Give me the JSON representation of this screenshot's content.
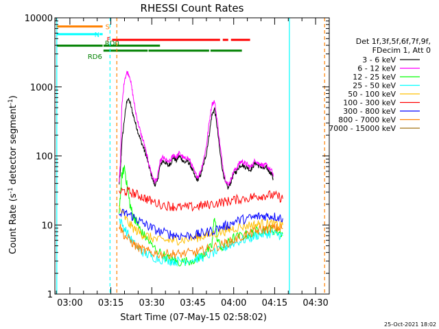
{
  "chart_data": {
    "type": "line",
    "title": "RHESSI Count Rates",
    "xlabel": "Start Time (07-May-15 02:58:02)",
    "ylabel": "Count Rate (s",
    "ylabel_sup": "-1",
    "ylabel_tail": " detector segment",
    "ylabel_sup2": "-1",
    "ylabel_close": ")",
    "yscale": "log",
    "x_units": "minutes since 02:58:02",
    "xlim": [
      -3.5,
      97
    ],
    "ylim": [
      1,
      10000
    ],
    "x_ticks": [
      {
        "label": "03:00",
        "x": 2
      },
      {
        "label": "03:15",
        "x": 17
      },
      {
        "label": "03:30",
        "x": 32
      },
      {
        "label": "03:45",
        "x": 47
      },
      {
        "label": "04:00",
        "x": 62
      },
      {
        "label": "04:15",
        "x": 77
      },
      {
        "label": "04:30",
        "x": 92
      }
    ],
    "y_ticks": [
      {
        "label": "1",
        "y": 1
      },
      {
        "label": "10",
        "y": 10
      },
      {
        "label": "100",
        "y": 100
      },
      {
        "label": "1000",
        "y": 1000
      },
      {
        "label": "10000",
        "y": 10000
      }
    ],
    "legend": {
      "placement": "right",
      "header": [
        "Det 1f,3f,5f,6f,7f,9f,",
        "FDecim 1, Att 0"
      ]
    },
    "series": [
      {
        "name": "3 - 6 keV",
        "color": "#000000",
        "x": [
          20,
          20.5,
          21,
          22,
          23,
          24,
          25,
          26,
          27,
          28,
          29,
          30,
          31,
          32,
          33,
          34,
          35,
          36,
          37,
          38,
          39,
          40,
          41,
          42,
          43,
          44,
          45,
          46,
          47,
          48,
          49,
          50,
          51,
          52,
          53,
          54,
          55,
          56,
          57,
          58,
          59,
          60,
          61,
          62,
          63,
          64,
          65,
          66,
          67,
          68,
          69,
          70,
          71,
          72,
          73,
          74,
          75,
          76,
          76.5
        ],
        "y": [
          38,
          60,
          150,
          350,
          680,
          600,
          420,
          300,
          220,
          165,
          130,
          100,
          70,
          50,
          38,
          42,
          70,
          85,
          80,
          72,
          80,
          95,
          85,
          100,
          90,
          80,
          85,
          75,
          60,
          48,
          45,
          55,
          75,
          110,
          200,
          390,
          480,
          250,
          110,
          60,
          40,
          34,
          42,
          55,
          60,
          70,
          75,
          70,
          68,
          62,
          70,
          80,
          72,
          70,
          65,
          68,
          60,
          55,
          45
        ]
      },
      {
        "name": "6 - 12 keV",
        "color": "#ff00ff",
        "x": [
          20,
          20.5,
          21,
          22,
          23,
          24,
          25,
          26,
          27,
          28,
          29,
          30,
          31,
          32,
          33,
          34,
          35,
          36,
          37,
          38,
          39,
          40,
          41,
          42,
          43,
          44,
          45,
          46,
          47,
          48,
          49,
          50,
          51,
          52,
          53,
          54,
          55,
          56,
          57,
          58,
          59,
          60,
          61,
          62,
          63,
          64,
          65,
          66,
          67,
          68,
          69,
          70,
          71,
          72,
          73,
          74,
          75,
          76,
          76.5
        ],
        "y": [
          40,
          80,
          500,
          1300,
          1650,
          1400,
          800,
          450,
          300,
          210,
          160,
          110,
          75,
          55,
          42,
          48,
          80,
          95,
          88,
          80,
          88,
          105,
          95,
          110,
          100,
          90,
          95,
          85,
          68,
          54,
          50,
          62,
          90,
          140,
          300,
          560,
          620,
          320,
          140,
          72,
          45,
          38,
          46,
          60,
          66,
          78,
          84,
          78,
          75,
          68,
          76,
          88,
          78,
          76,
          72,
          74,
          66,
          60,
          50
        ]
      },
      {
        "name": "12 - 25 keV",
        "color": "#00ff00",
        "x": [
          20,
          21,
          22,
          23,
          24,
          25,
          26,
          27,
          28,
          30,
          32,
          35,
          38,
          40,
          42,
          45,
          48,
          50,
          52,
          54,
          55,
          56,
          58,
          60,
          62,
          65,
          68,
          70,
          72,
          74,
          76,
          78,
          80
        ],
        "y": [
          15,
          50,
          70,
          35,
          20,
          14,
          12,
          10,
          8,
          6.5,
          5,
          4,
          3.3,
          3,
          2.9,
          3,
          3.2,
          3.5,
          4,
          5,
          14,
          6,
          4.5,
          5.5,
          6.5,
          7,
          7.5,
          8,
          8.5,
          8.5,
          8.5,
          8,
          7.5
        ]
      },
      {
        "name": "25 - 50 keV",
        "color": "#00ffff",
        "x": [
          20,
          22,
          24,
          26,
          28,
          30,
          32,
          35,
          38,
          40,
          42,
          45,
          48,
          50,
          52,
          55,
          58,
          60,
          62,
          65,
          68,
          70,
          72,
          74,
          76,
          78,
          80
        ],
        "y": [
          12,
          9,
          6.5,
          5,
          4.2,
          3.8,
          3.5,
          3.2,
          3.1,
          3,
          3,
          3.1,
          3.2,
          3.4,
          3.6,
          4,
          4.5,
          5,
          5.5,
          6,
          6.5,
          7,
          7.3,
          7.5,
          7.5,
          7.3,
          7
        ]
      },
      {
        "name": "50 - 100 keV",
        "color": "#ffbf00",
        "x": [
          20,
          22,
          24,
          26,
          28,
          30,
          32,
          35,
          38,
          40,
          42,
          45,
          48,
          50,
          52,
          55,
          58,
          60,
          62,
          65,
          68,
          70,
          72,
          74,
          76,
          78,
          80
        ],
        "y": [
          18,
          13,
          10,
          8.5,
          7.5,
          7,
          6.5,
          6,
          6,
          6,
          6,
          6.2,
          6.5,
          6.8,
          7,
          7.5,
          8,
          8.5,
          9,
          9.5,
          10,
          10,
          10.5,
          10.5,
          10.5,
          10,
          10
        ]
      },
      {
        "name": "100 - 300 keV",
        "color": "#ff0000",
        "x": [
          20,
          22,
          24,
          26,
          28,
          30,
          32,
          35,
          38,
          40,
          42,
          45,
          48,
          50,
          52,
          55,
          58,
          60,
          62,
          65,
          68,
          70,
          72,
          74,
          76,
          78,
          80
        ],
        "y": [
          30,
          31,
          30,
          28,
          26,
          24,
          22,
          20,
          19,
          18.5,
          18,
          18,
          18.5,
          19,
          19.5,
          20.5,
          21.5,
          22,
          23,
          24,
          25,
          26,
          26.5,
          27,
          27,
          26,
          24
        ]
      },
      {
        "name": "300 - 800 keV",
        "color": "#0000ff",
        "x": [
          20,
          22,
          24,
          26,
          28,
          30,
          32,
          35,
          38,
          40,
          42,
          45,
          48,
          50,
          52,
          55,
          58,
          60,
          62,
          65,
          68,
          70,
          72,
          74,
          76,
          78,
          80
        ],
        "y": [
          14,
          15,
          14,
          12.5,
          11,
          10,
          9,
          8,
          7.5,
          7.2,
          7,
          7,
          7.2,
          7.5,
          7.8,
          8.5,
          9.5,
          10,
          11,
          12,
          12.5,
          13,
          13.5,
          13.5,
          13.5,
          13,
          12.5
        ]
      },
      {
        "name": "800 - 7000 keV",
        "color": "#ff8000",
        "x": [
          20,
          22,
          24,
          26,
          28,
          30,
          32,
          35,
          38,
          40,
          42,
          45,
          48,
          50,
          52,
          55,
          58,
          60,
          62,
          65,
          68,
          70,
          72,
          74,
          76,
          78,
          80
        ],
        "y": [
          10,
          7,
          6,
          5,
          4.5,
          4.2,
          4,
          3.8,
          3.8,
          3.8,
          3.8,
          3.9,
          4,
          4.2,
          4.4,
          4.8,
          5.2,
          5.6,
          6,
          6.8,
          7.5,
          8,
          8.5,
          8.8,
          9,
          9,
          9
        ]
      },
      {
        "name": "7000 - 15000 keV",
        "color": "#a07010",
        "x": [],
        "y": []
      }
    ],
    "flags": [
      {
        "label": "S",
        "color": "#ff8000",
        "y_level": 7500,
        "segments": [
          [
            -3,
            14
          ]
        ]
      },
      {
        "label": "N",
        "color": "#00ffff",
        "y_level": 5800,
        "segments": [
          [
            -3,
            12.5
          ],
          [
            12.8,
            14
          ]
        ]
      },
      {
        "label": "F",
        "color": "#ff0000",
        "y_level": 4800,
        "segments": [
          [
            17.5,
            57
          ],
          [
            58,
            60
          ],
          [
            61,
            68
          ]
        ]
      },
      {
        "label": "RD0",
        "color": "#008000",
        "y_level": 3950,
        "segments": [
          [
            -3,
            14
          ],
          [
            14.3,
            35
          ]
        ]
      },
      {
        "label": "RD6",
        "color": "#008000",
        "y_level": 3350,
        "segments": [
          [
            14.3,
            30.5
          ],
          [
            30.8,
            53
          ],
          [
            53.5,
            65
          ]
        ]
      }
    ],
    "vlines": [
      {
        "x": -2.8,
        "color": "#00ffff",
        "style": "solid"
      },
      {
        "x": 16.7,
        "color": "#00ffff",
        "style": "dashed"
      },
      {
        "x": 19.2,
        "color": "#ff8000",
        "style": "dashed"
      },
      {
        "x": 82.4,
        "color": "#00ffff",
        "style": "solid"
      },
      {
        "x": 95.3,
        "color": "#ff8000",
        "style": "dashed"
      }
    ]
  },
  "timestamp": "25-Oct-2021 18:02"
}
